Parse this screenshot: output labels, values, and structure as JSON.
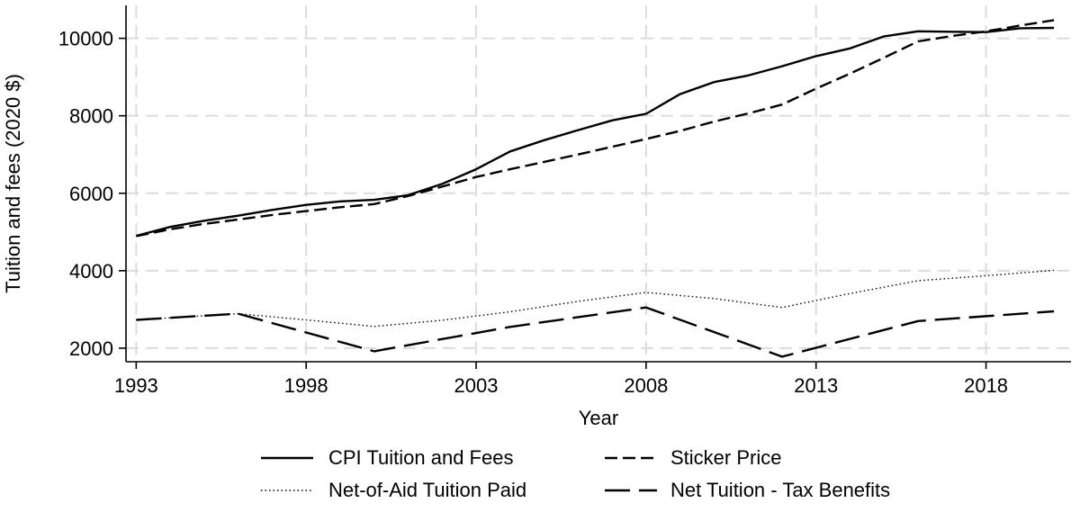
{
  "chart_data": {
    "type": "line",
    "title": "",
    "xlabel": "Year",
    "ylabel": "Tuition and fees (2020 $)",
    "xlim": [
      1992.7,
      2020.5
    ],
    "ylim": [
      1650,
      10850
    ],
    "xticks": [
      1993,
      1998,
      2003,
      2008,
      2013,
      2018
    ],
    "xtick_labels": [
      "1993",
      "1998",
      "2003",
      "2008",
      "2013",
      "2018"
    ],
    "yticks": [
      2000,
      4000,
      6000,
      8000,
      10000
    ],
    "ytick_labels": [
      "2000",
      "4000",
      "6000",
      "8000",
      "10000"
    ],
    "grid": true,
    "legend_position": "bottom",
    "series": [
      {
        "name": "CPI Tuition and Fees",
        "style": "solid",
        "x": [
          1993,
          1994,
          1995,
          1996,
          1997,
          1998,
          1999,
          2000,
          2001,
          2002,
          2003,
          2004,
          2005,
          2006,
          2007,
          2008,
          2009,
          2010,
          2011,
          2012,
          2013,
          2014,
          2015,
          2016,
          2017,
          2018,
          2019,
          2020
        ],
        "y": [
          4900,
          5130,
          5290,
          5420,
          5570,
          5700,
          5790,
          5830,
          5950,
          6240,
          6620,
          7080,
          7370,
          7630,
          7880,
          8050,
          8560,
          8870,
          9040,
          9280,
          9540,
          9740,
          10050,
          10180,
          10170,
          10160,
          10260,
          10270
        ]
      },
      {
        "name": "Sticker Price",
        "style": "dashed",
        "x": [
          1993,
          1994,
          1995,
          1996,
          1997,
          1998,
          1999,
          2000,
          2001,
          2002,
          2003,
          2004,
          2005,
          2006,
          2007,
          2008,
          2009,
          2010,
          2011,
          2012,
          2013,
          2014,
          2015,
          2016,
          2017,
          2018,
          2019,
          2020
        ],
        "y": [
          4890,
          5070,
          5210,
          5320,
          5440,
          5540,
          5640,
          5720,
          5930,
          6170,
          6420,
          6620,
          6810,
          7000,
          7200,
          7400,
          7610,
          7850,
          8060,
          8290,
          8700,
          9090,
          9500,
          9920,
          10060,
          10180,
          10330,
          10470
        ]
      },
      {
        "name": "Net-of-Aid Tuition Paid",
        "style": "dotted",
        "x": [
          1993,
          1996,
          1998,
          2000,
          2002,
          2004,
          2006,
          2008,
          2010,
          2012,
          2014,
          2016,
          2018,
          2020
        ],
        "y": [
          2730,
          2890,
          2730,
          2560,
          2720,
          2940,
          3210,
          3440,
          3280,
          3050,
          3410,
          3740,
          3870,
          4010
        ]
      },
      {
        "name": "Net Tuition - Tax Benefits",
        "style": "longdash",
        "x": [
          1993,
          1996,
          2000,
          2004,
          2008,
          2012,
          2016,
          2020
        ],
        "y": [
          2730,
          2890,
          1920,
          2550,
          3050,
          1780,
          2700,
          2950
        ]
      }
    ]
  }
}
